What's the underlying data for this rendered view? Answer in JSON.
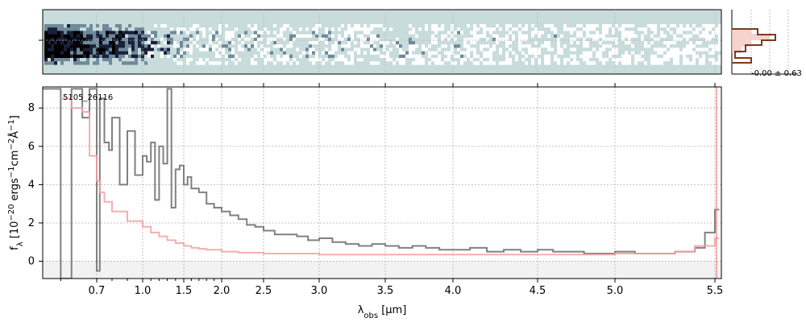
{
  "chart_data": [
    {
      "type": "heatmap",
      "name": "2d-spectrum",
      "colormap": [
        "#ffffff",
        "#c8dcdc",
        "#6e8a9a",
        "#1a1f3a",
        "#000000"
      ],
      "background_color": "#c8dcdc",
      "note_visible": ""
    },
    {
      "type": "line",
      "name": "1d-spectrum",
      "label": "5105_26116",
      "xlabel": "λ_obs [μm]",
      "ylabel": "f_λ [10^-20 ergs^-1cm^-2Å^-1]",
      "xlim": [
        0.55,
        5.53
      ],
      "ylim": [
        -0.9,
        9.1
      ],
      "x_ticks": [
        {
          "value": 0.7,
          "label": "0.7"
        },
        {
          "value": 1.0,
          "label": "1.0"
        },
        {
          "value": 1.5,
          "label": "1.5"
        },
        {
          "value": 2.0,
          "label": "2.0"
        },
        {
          "value": 2.5,
          "label": "2.5"
        },
        {
          "value": 3.0,
          "label": "3.0"
        },
        {
          "value": 3.5,
          "label": "3.5"
        },
        {
          "value": 4.0,
          "label": "4.0"
        },
        {
          "value": 4.5,
          "label": "4.5"
        },
        {
          "value": 5.0,
          "label": "5.0"
        },
        {
          "value": 5.5,
          "label": "5.5"
        }
      ],
      "y_ticks": [
        {
          "value": 0,
          "label": "0"
        },
        {
          "value": 2,
          "label": "2"
        },
        {
          "value": 4,
          "label": "4"
        },
        {
          "value": 6,
          "label": "6"
        },
        {
          "value": 8,
          "label": "8"
        }
      ],
      "grid": true,
      "series": [
        {
          "color": "#808080",
          "style": "steps",
          "x": [
            0.55,
            0.6,
            0.63,
            0.66,
            0.68,
            0.7,
            0.72,
            0.75,
            0.78,
            0.8,
            0.85,
            0.9,
            0.95,
            1.0,
            1.05,
            1.1,
            1.15,
            1.2,
            1.25,
            1.3,
            1.35,
            1.4,
            1.45,
            1.5,
            1.55,
            1.6,
            1.7,
            1.8,
            1.9,
            2.0,
            2.1,
            2.2,
            2.3,
            2.4,
            2.5,
            2.6,
            2.7,
            2.8,
            2.9,
            3.0,
            3.1,
            3.2,
            3.3,
            3.4,
            3.5,
            3.6,
            3.7,
            3.8,
            3.9,
            4.0,
            4.1,
            4.2,
            4.3,
            4.4,
            4.5,
            4.6,
            4.7,
            4.8,
            4.9,
            5.0,
            5.1,
            5.2,
            5.3,
            5.4,
            5.45,
            5.5
          ],
          "y": [
            9.0,
            -0.9,
            9.0,
            7.5,
            9.0,
            -0.5,
            8.5,
            6.2,
            5.8,
            7.5,
            4.0,
            6.8,
            4.5,
            5.5,
            5.2,
            6.2,
            3.2,
            6.0,
            5.1,
            9.0,
            2.8,
            4.8,
            5.0,
            4.0,
            4.4,
            3.8,
            3.6,
            3.0,
            2.8,
            2.6,
            2.4,
            2.2,
            1.9,
            1.8,
            1.6,
            1.4,
            1.4,
            1.3,
            1.1,
            1.2,
            1.0,
            0.9,
            0.8,
            0.9,
            0.8,
            0.7,
            0.8,
            0.7,
            0.6,
            0.6,
            0.7,
            0.5,
            0.6,
            0.5,
            0.6,
            0.5,
            0.5,
            0.4,
            0.4,
            0.5,
            0.4,
            0.4,
            0.5,
            0.7,
            1.5,
            2.7
          ]
        },
        {
          "color": "#f5a0a0",
          "style": "steps",
          "x": [
            0.6,
            0.63,
            0.66,
            0.68,
            0.7,
            0.72,
            0.75,
            0.8,
            0.9,
            1.0,
            1.1,
            1.2,
            1.3,
            1.4,
            1.5,
            1.6,
            1.7,
            1.8,
            2.0,
            2.2,
            2.5,
            3.0,
            3.5,
            4.0,
            4.5,
            5.0,
            5.3,
            5.4,
            5.5
          ],
          "y": [
            8.5,
            8.0,
            7.8,
            5.5,
            4.2,
            3.6,
            3.1,
            2.6,
            2.1,
            1.8,
            1.5,
            1.3,
            1.1,
            0.95,
            0.8,
            0.7,
            0.65,
            0.6,
            0.5,
            0.45,
            0.4,
            0.35,
            0.35,
            0.35,
            0.35,
            0.4,
            0.5,
            0.8,
            1.2
          ]
        }
      ]
    },
    {
      "type": "bar",
      "name": "residual-histogram",
      "annotation": "-0.00 ± 0.63",
      "color": "#7a3a1e"
    }
  ]
}
